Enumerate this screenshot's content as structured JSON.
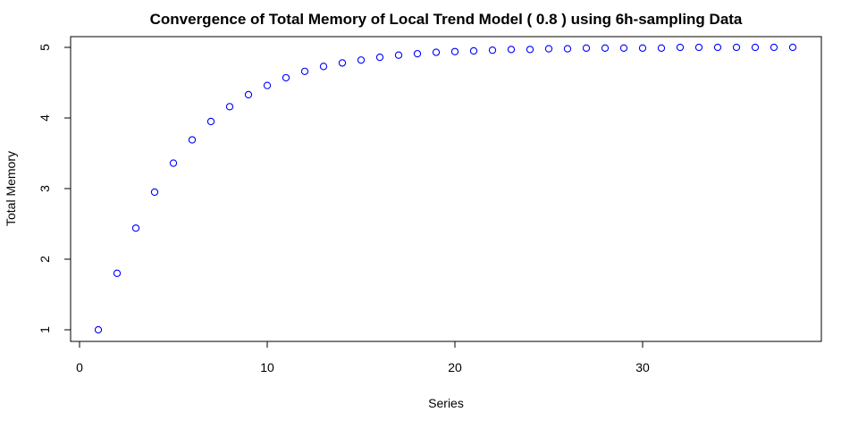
{
  "chart_data": {
    "type": "scatter",
    "title": "Convergence of Total Memory of Local Trend Model ( 0.8 ) using 6h-sampling Data",
    "xlabel": "Series",
    "ylabel": "Total Memory",
    "xlim": [
      0,
      39
    ],
    "ylim": [
      1,
      5
    ],
    "x_ticks": [
      0,
      10,
      20,
      30
    ],
    "y_ticks": [
      1,
      2,
      3,
      4,
      5
    ],
    "grid": false,
    "legend": "none",
    "point_color": "#0000ff",
    "series": [
      {
        "x": [
          1,
          2,
          3,
          4,
          5,
          6,
          7,
          8,
          9,
          10,
          11,
          12,
          13,
          14,
          15,
          16,
          17,
          18,
          19,
          20,
          21,
          22,
          23,
          24,
          25,
          26,
          27,
          28,
          29,
          30,
          31,
          32,
          33,
          34,
          35,
          36,
          37,
          38
        ],
        "y": [
          1.0,
          1.8,
          2.44,
          2.95,
          3.36,
          3.69,
          3.95,
          4.16,
          4.33,
          4.46,
          4.57,
          4.66,
          4.73,
          4.78,
          4.82,
          4.86,
          4.89,
          4.91,
          4.93,
          4.94,
          4.95,
          4.96,
          4.97,
          4.97,
          4.98,
          4.98,
          4.99,
          4.99,
          4.99,
          4.99,
          4.99,
          5.0,
          5.0,
          5.0,
          5.0,
          5.0,
          5.0,
          5.0
        ]
      }
    ]
  }
}
